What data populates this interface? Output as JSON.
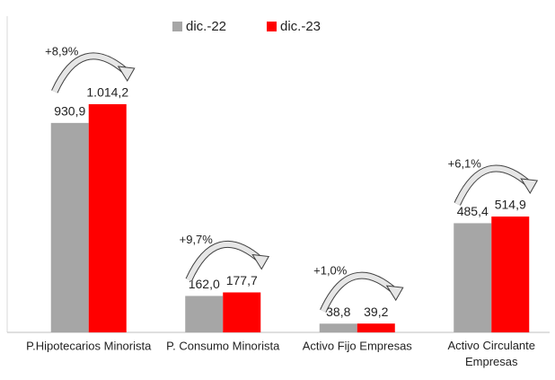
{
  "chart_data": {
    "type": "bar",
    "categories": [
      "P.Hipotecarios Minorista",
      "P. Consumo Minorista",
      "Activo Fijo Empresas",
      "Activo Circulante Empresas"
    ],
    "series": [
      {
        "name": "dic.-22",
        "color": "#a6a6a6",
        "values": [
          930.9,
          162.0,
          38.8,
          485.4
        ],
        "value_labels": [
          "930,9",
          "162,0",
          "38,8",
          "485,4"
        ]
      },
      {
        "name": "dic.-23",
        "color": "#ff0000",
        "values": [
          1014.2,
          177.7,
          39.2,
          514.9
        ],
        "value_labels": [
          "1.014,2",
          "177,7",
          "39,2",
          "514,9"
        ]
      }
    ],
    "annotations": [
      "+8,9%",
      "+9,7%",
      "+1,0%",
      "+6,1%"
    ]
  }
}
